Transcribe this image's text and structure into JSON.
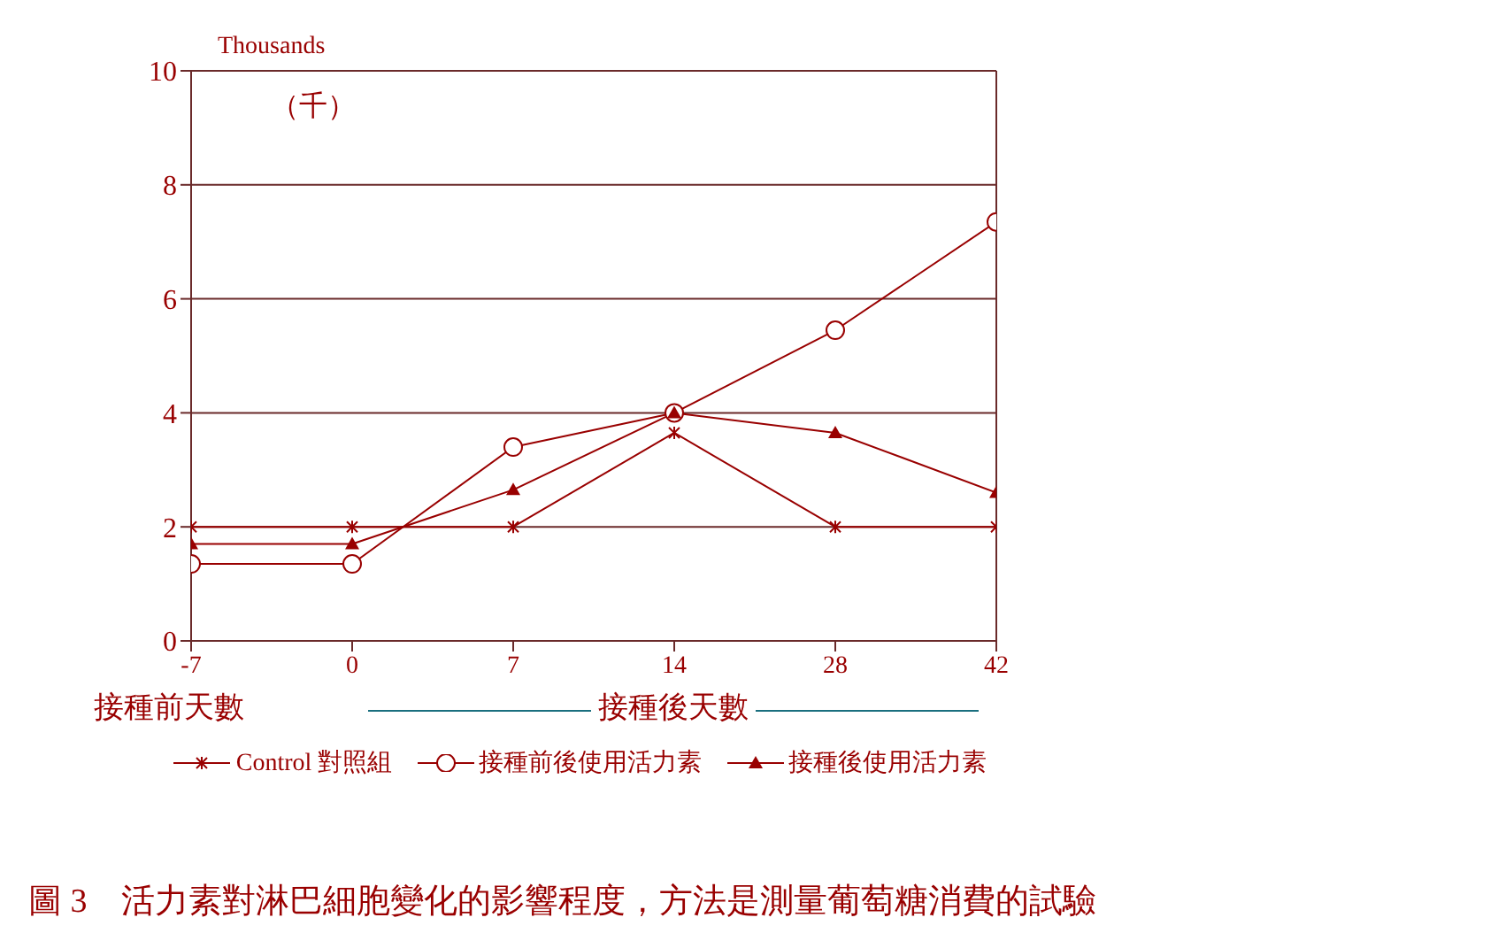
{
  "chart_data": {
    "type": "line",
    "title": "圖 3　活力素對淋巴細胞變化的影響程度，方法是測量葡萄糖消費的試驗",
    "ylabel": "Thousands",
    "annotations": [
      "（千）",
      "接種前天數",
      "接種後天數"
    ],
    "categories": [
      "-7",
      "0",
      "7",
      "14",
      "28",
      "42"
    ],
    "series": [
      {
        "name": "Control 對照組",
        "color": "#990000",
        "marker": "cross",
        "values": [
          2,
          2,
          2,
          3.65,
          2,
          2
        ]
      },
      {
        "name": "接種前後使用活力素",
        "color": "#990000",
        "marker": "circle",
        "values": [
          1.35,
          1.35,
          3.4,
          4.0,
          5.45,
          7.35
        ]
      },
      {
        "name": "接種後使用活力素",
        "color": "#990000",
        "marker": "triangle",
        "values": [
          1.7,
          1.7,
          2.65,
          4.0,
          3.65,
          2.6
        ]
      }
    ],
    "ylim": [
      0,
      10
    ],
    "yticks": [
      0,
      2,
      4,
      6,
      8,
      10
    ],
    "grid": "y",
    "legend": "bottom",
    "line_style": "solid"
  }
}
